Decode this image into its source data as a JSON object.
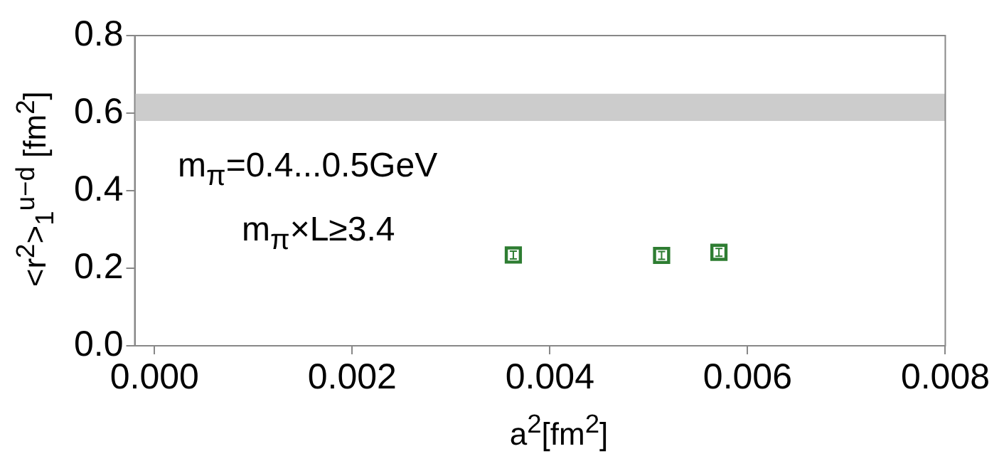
{
  "chart_data": {
    "type": "scatter",
    "xlabel": "a$^{2}$[fm$^{2}$]",
    "ylabel": "<r$^{2}$>$_{1}$$^{u−d}$ [fm$^{2}$]",
    "x": [
      0.00363,
      0.00513,
      0.00571
    ],
    "series": [
      {
        "color": "#2e7d32",
        "values": [
          0.234,
          0.233,
          0.241
        ],
        "errors": [
          0.01,
          0.01,
          0.01
        ]
      }
    ],
    "marker": "square",
    "xlim": [
      -0.0002,
      0.008
    ],
    "ylim": [
      0,
      0.8
    ],
    "xticks": [
      {
        "value": 0,
        "label": "0.000"
      },
      {
        "value": 0.002,
        "label": "0.002"
      },
      {
        "value": 0.004,
        "label": "0.004"
      },
      {
        "value": 0.006,
        "label": "0.006"
      },
      {
        "value": 0.008,
        "label": "0.008"
      }
    ],
    "yticks": [
      {
        "value": 0,
        "label": "0.0"
      },
      {
        "value": 0.2,
        "label": "0.2"
      },
      {
        "value": 0.4,
        "label": "0.4"
      },
      {
        "value": 0.6,
        "label": "0.6"
      },
      {
        "value": 0.8,
        "label": "0.8"
      }
    ],
    "bands": [
      {
        "axis": "y",
        "from": 0.58,
        "to": 0.65,
        "color": "#cccccc"
      }
    ],
    "annotations": [
      "m$_{π}$=0.4...0.5GeV",
      "m$_{π}$×L≥3.4"
    ],
    "grid": false,
    "legend": false
  }
}
